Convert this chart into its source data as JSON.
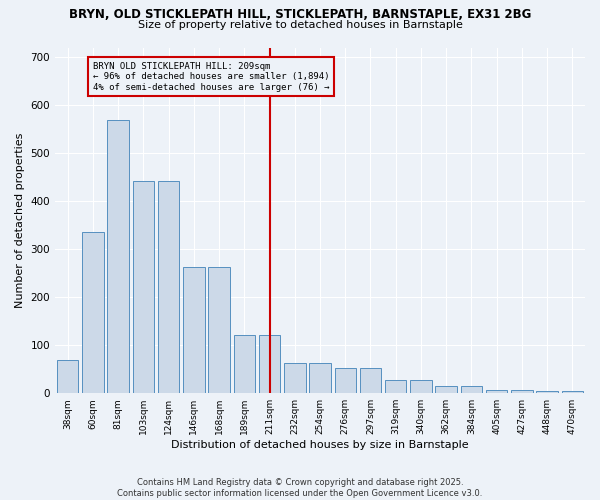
{
  "title_line1": "BRYN, OLD STICKLEPATH HILL, STICKLEPATH, BARNSTAPLE, EX31 2BG",
  "title_line2": "Size of property relative to detached houses in Barnstaple",
  "xlabel": "Distribution of detached houses by size in Barnstaple",
  "ylabel": "Number of detached properties",
  "categories": [
    "38sqm",
    "60sqm",
    "81sqm",
    "103sqm",
    "124sqm",
    "146sqm",
    "168sqm",
    "189sqm",
    "211sqm",
    "232sqm",
    "254sqm",
    "276sqm",
    "297sqm",
    "319sqm",
    "340sqm",
    "362sqm",
    "384sqm",
    "405sqm",
    "427sqm",
    "448sqm",
    "470sqm"
  ],
  "bar_heights": [
    70,
    335,
    570,
    443,
    443,
    262,
    262,
    122,
    122,
    63,
    63,
    52,
    52,
    27,
    27,
    15,
    15,
    7,
    7,
    5,
    5
  ],
  "bar_color": "#ccd9e8",
  "bar_edge_color": "#5590c0",
  "vline_pos": 8,
  "vline_color": "#cc0000",
  "annotation_text": "BRYN OLD STICKLEPATH HILL: 209sqm\n← 96% of detached houses are smaller (1,894)\n4% of semi-detached houses are larger (76) →",
  "footer_text": "Contains HM Land Registry data © Crown copyright and database right 2025.\nContains public sector information licensed under the Open Government Licence v3.0.",
  "bg_color": "#edf2f8",
  "ylim": [
    0,
    720
  ],
  "yticks": [
    0,
    100,
    200,
    300,
    400,
    500,
    600,
    700
  ]
}
